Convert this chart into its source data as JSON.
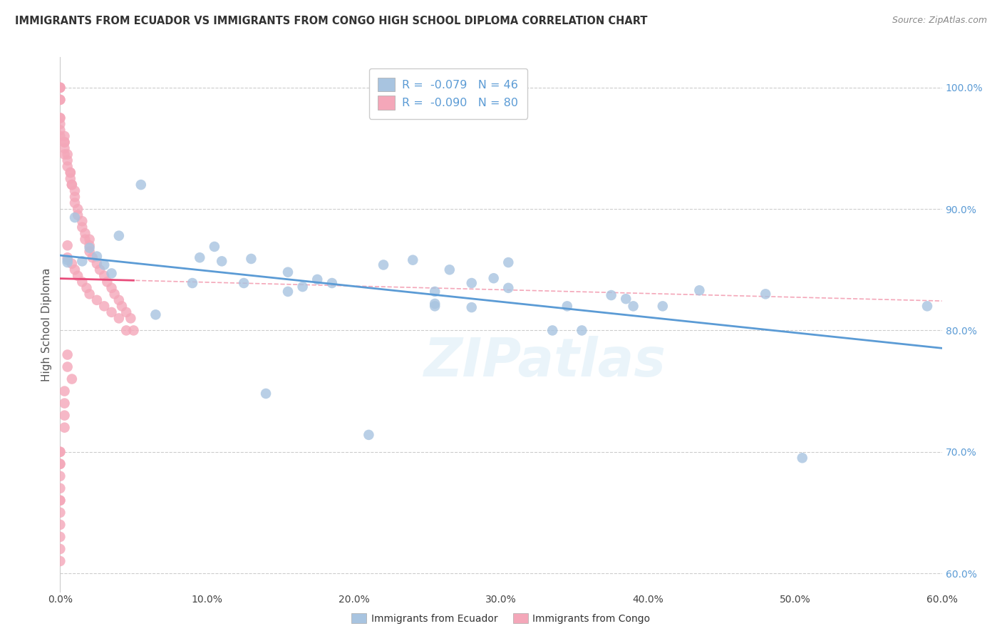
{
  "title": "IMMIGRANTS FROM ECUADOR VS IMMIGRANTS FROM CONGO HIGH SCHOOL DIPLOMA CORRELATION CHART",
  "source": "Source: ZipAtlas.com",
  "ylabel": "High School Diploma",
  "xlim": [
    0.0,
    0.6
  ],
  "ylim": [
    0.585,
    1.025
  ],
  "x_ticks": [
    0.0,
    0.1,
    0.2,
    0.3,
    0.4,
    0.5,
    0.6
  ],
  "x_tick_labels": [
    "0.0%",
    "10.0%",
    "20.0%",
    "30.0%",
    "40.0%",
    "50.0%",
    "60.0%"
  ],
  "y_tick_labels_right": [
    "60.0%",
    "70.0%",
    "80.0%",
    "90.0%",
    "100.0%"
  ],
  "y_ticks_right": [
    0.6,
    0.7,
    0.8,
    0.9,
    1.0
  ],
  "legend_ecuador": "R = -0.079  N = 46",
  "legend_congo": "R = -0.090  N = 80",
  "color_ecuador": "#a8c4e0",
  "color_ecuador_line": "#5b9bd5",
  "color_congo": "#f4a7b9",
  "color_congo_line": "#e84b7a",
  "color_congo_line_dashed": "#f4a7b9",
  "watermark": "ZIPatlas",
  "ecuador_x": [
    0.005,
    0.005,
    0.01,
    0.015,
    0.02,
    0.025,
    0.03,
    0.035,
    0.04,
    0.055,
    0.065,
    0.09,
    0.095,
    0.105,
    0.11,
    0.125,
    0.13,
    0.155,
    0.175,
    0.185,
    0.22,
    0.24,
    0.265,
    0.28,
    0.295,
    0.305,
    0.255,
    0.345,
    0.375,
    0.39,
    0.14,
    0.155,
    0.165,
    0.21,
    0.255,
    0.255,
    0.28,
    0.305,
    0.335,
    0.355,
    0.385,
    0.41,
    0.435,
    0.48,
    0.505,
    0.59
  ],
  "ecuador_y": [
    0.856,
    0.858,
    0.893,
    0.857,
    0.868,
    0.861,
    0.854,
    0.847,
    0.878,
    0.92,
    0.813,
    0.839,
    0.86,
    0.869,
    0.857,
    0.839,
    0.859,
    0.848,
    0.842,
    0.839,
    0.854,
    0.858,
    0.85,
    0.819,
    0.843,
    0.835,
    0.822,
    0.82,
    0.829,
    0.82,
    0.748,
    0.832,
    0.836,
    0.714,
    0.832,
    0.82,
    0.839,
    0.856,
    0.8,
    0.8,
    0.826,
    0.82,
    0.833,
    0.83,
    0.695,
    0.82
  ],
  "congo_x": [
    0.0,
    0.0,
    0.0,
    0.0,
    0.0,
    0.0,
    0.0,
    0.0,
    0.0,
    0.0,
    0.003,
    0.003,
    0.003,
    0.003,
    0.003,
    0.005,
    0.005,
    0.005,
    0.007,
    0.007,
    0.007,
    0.008,
    0.008,
    0.01,
    0.01,
    0.01,
    0.012,
    0.012,
    0.015,
    0.015,
    0.017,
    0.017,
    0.02,
    0.02,
    0.02,
    0.022,
    0.025,
    0.027,
    0.03,
    0.032,
    0.035,
    0.037,
    0.04,
    0.042,
    0.045,
    0.048,
    0.05,
    0.005,
    0.005,
    0.008,
    0.01,
    0.012,
    0.015,
    0.018,
    0.02,
    0.025,
    0.03,
    0.035,
    0.04,
    0.045,
    0.005,
    0.005,
    0.008,
    0.003,
    0.003,
    0.003,
    0.003,
    0.0,
    0.0,
    0.0,
    0.0,
    0.0,
    0.0,
    0.0,
    0.0,
    0.0,
    0.0,
    0.0,
    0.0,
    0.0
  ],
  "congo_y": [
    1.0,
    1.0,
    1.0,
    0.99,
    0.99,
    0.975,
    0.975,
    0.97,
    0.965,
    0.96,
    0.96,
    0.955,
    0.955,
    0.95,
    0.945,
    0.945,
    0.94,
    0.935,
    0.93,
    0.93,
    0.925,
    0.92,
    0.92,
    0.915,
    0.91,
    0.905,
    0.9,
    0.895,
    0.89,
    0.885,
    0.88,
    0.875,
    0.875,
    0.87,
    0.865,
    0.86,
    0.855,
    0.85,
    0.845,
    0.84,
    0.835,
    0.83,
    0.825,
    0.82,
    0.815,
    0.81,
    0.8,
    0.87,
    0.86,
    0.855,
    0.85,
    0.845,
    0.84,
    0.835,
    0.83,
    0.825,
    0.82,
    0.815,
    0.81,
    0.8,
    0.78,
    0.77,
    0.76,
    0.75,
    0.74,
    0.73,
    0.72,
    0.7,
    0.69,
    0.68,
    0.67,
    0.66,
    0.65,
    0.64,
    0.63,
    0.62,
    0.61,
    0.7,
    0.69,
    0.66
  ]
}
